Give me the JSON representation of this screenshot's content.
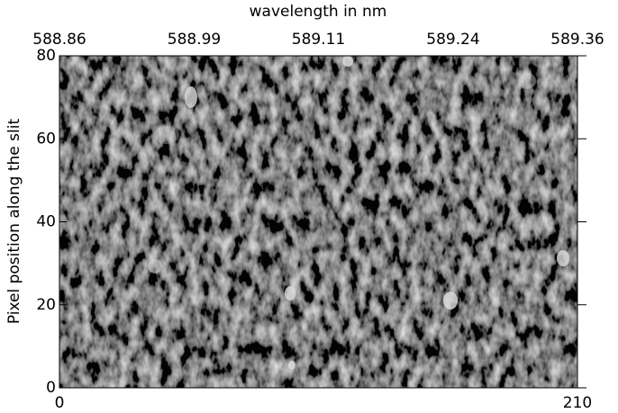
{
  "chart_data": {
    "type": "heatmap",
    "x2label": "wavelength in nm",
    "ylabel": "Pixel position along the slit",
    "xlim": [
      0,
      210
    ],
    "xticks": [
      0,
      210
    ],
    "x2lim": [
      588.86,
      589.36
    ],
    "x2ticks": [
      588.86,
      588.99,
      589.11,
      589.24,
      589.36
    ],
    "ylim": [
      0,
      80
    ],
    "yticks": [
      0,
      20,
      40,
      60,
      80
    ]
  }
}
